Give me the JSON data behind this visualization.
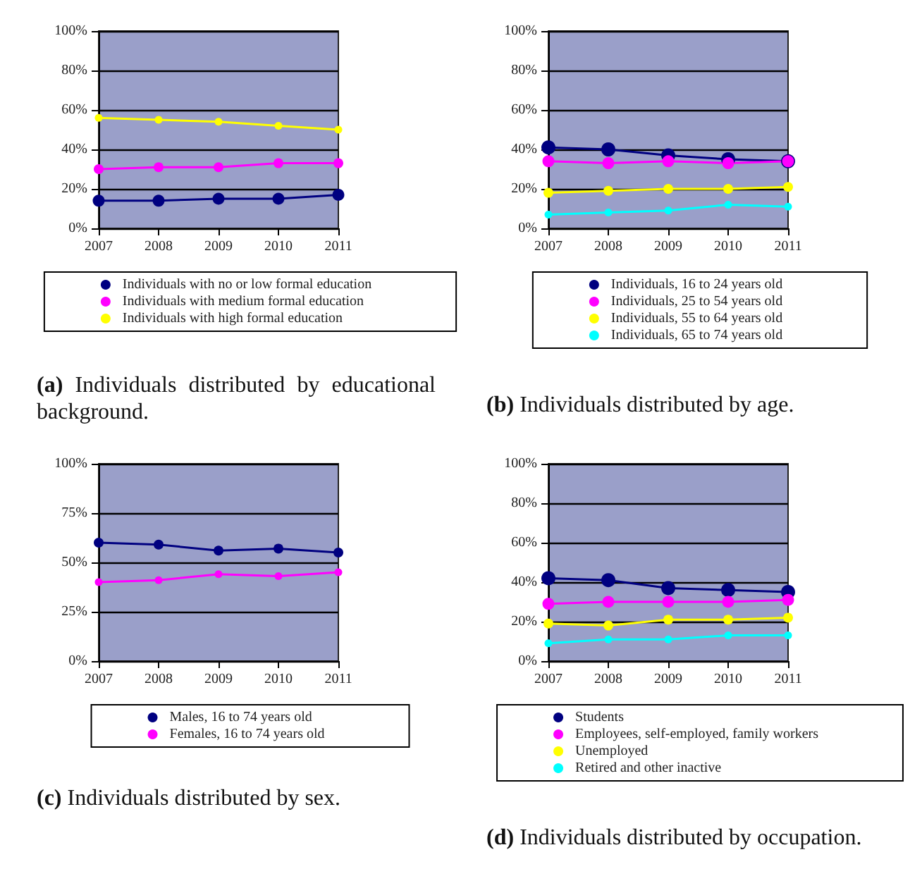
{
  "chart_data": [
    {
      "type": "line",
      "title": "(a) Individuals distributed by educational background.",
      "categories": [
        "2007",
        "2008",
        "2009",
        "2010",
        "2011"
      ],
      "series": [
        {
          "name": "Individuals with no or low formal education",
          "color": "#000080",
          "values": [
            14,
            14,
            15,
            15,
            17
          ]
        },
        {
          "name": "Individuals with medium formal education",
          "color": "#ff00ff",
          "values": [
            30,
            31,
            31,
            33,
            33
          ]
        },
        {
          "name": "Individuals with high formal education",
          "color": "#ffff00",
          "values": [
            56,
            55,
            54,
            52,
            50
          ]
        }
      ],
      "ylim": [
        0,
        100
      ],
      "yticks": [
        {
          "value": 0,
          "label": "0%"
        },
        {
          "value": 20,
          "label": "20%"
        },
        {
          "value": 40,
          "label": "40%"
        },
        {
          "value": 60,
          "label": "60%"
        },
        {
          "value": 80,
          "label": "80%"
        },
        {
          "value": 100,
          "label": "100%"
        }
      ],
      "grid": "y",
      "legend": "bottom",
      "marker": "circle"
    },
    {
      "type": "line",
      "title": "(b) Individuals distributed by age.",
      "categories": [
        "2007",
        "2008",
        "2009",
        "2010",
        "2011"
      ],
      "series": [
        {
          "name": "Individuals, 16 to 24 years old",
          "color": "#000080",
          "values": [
            41,
            40,
            37,
            35,
            34
          ]
        },
        {
          "name": "Individuals, 25 to 54 years old",
          "color": "#ff00ff",
          "values": [
            34,
            33,
            34,
            33,
            34
          ]
        },
        {
          "name": "Individuals, 55 to 64 years old",
          "color": "#ffff00",
          "values": [
            18,
            19,
            20,
            20,
            21
          ]
        },
        {
          "name": "Individuals, 65 to 74 years old",
          "color": "#00ffff",
          "values": [
            7,
            8,
            9,
            12,
            11
          ]
        }
      ],
      "ylim": [
        0,
        100
      ],
      "yticks": [
        {
          "value": 0,
          "label": "0%"
        },
        {
          "value": 20,
          "label": "20%"
        },
        {
          "value": 40,
          "label": "40%"
        },
        {
          "value": 60,
          "label": "60%"
        },
        {
          "value": 80,
          "label": "80%"
        },
        {
          "value": 100,
          "label": "100%"
        }
      ],
      "grid": "y",
      "legend": "bottom",
      "marker": "circle"
    },
    {
      "type": "line",
      "title": "(c) Individuals distributed by sex.",
      "categories": [
        "2007",
        "2008",
        "2009",
        "2010",
        "2011"
      ],
      "series": [
        {
          "name": "Males, 16 to 74 years old",
          "color": "#000080",
          "values": [
            60,
            59,
            56,
            57,
            55
          ]
        },
        {
          "name": "Females, 16 to 74 years old",
          "color": "#ff00ff",
          "values": [
            40,
            41,
            44,
            43,
            45
          ]
        }
      ],
      "ylim": [
        0,
        100
      ],
      "yticks": [
        {
          "value": 0,
          "label": "0%"
        },
        {
          "value": 25,
          "label": "25%"
        },
        {
          "value": 50,
          "label": "50%"
        },
        {
          "value": 75,
          "label": "75%"
        },
        {
          "value": 100,
          "label": "100%"
        }
      ],
      "grid": "y",
      "legend": "bottom",
      "marker": "circle"
    },
    {
      "type": "line",
      "title": "(d) Individuals distributed by occupation.",
      "categories": [
        "2007",
        "2008",
        "2009",
        "2010",
        "2011"
      ],
      "series": [
        {
          "name": "Students",
          "color": "#000080",
          "values": [
            42,
            41,
            37,
            36,
            35
          ]
        },
        {
          "name": "Employees, self-employed, family workers",
          "color": "#ff00ff",
          "values": [
            29,
            30,
            30,
            30,
            31
          ]
        },
        {
          "name": "Unemployed",
          "color": "#ffff00",
          "values": [
            19,
            18,
            21,
            21,
            22
          ]
        },
        {
          "name": "Retired and other inactive",
          "color": "#00ffff",
          "values": [
            9,
            11,
            11,
            13,
            13
          ]
        }
      ],
      "ylim": [
        0,
        100
      ],
      "yticks": [
        {
          "value": 0,
          "label": "0%"
        },
        {
          "value": 20,
          "label": "20%"
        },
        {
          "value": 40,
          "label": "40%"
        },
        {
          "value": 60,
          "label": "60%"
        },
        {
          "value": 80,
          "label": "80%"
        },
        {
          "value": 100,
          "label": "100%"
        }
      ],
      "grid": "y",
      "legend": "bottom",
      "marker": "circle"
    }
  ]
}
